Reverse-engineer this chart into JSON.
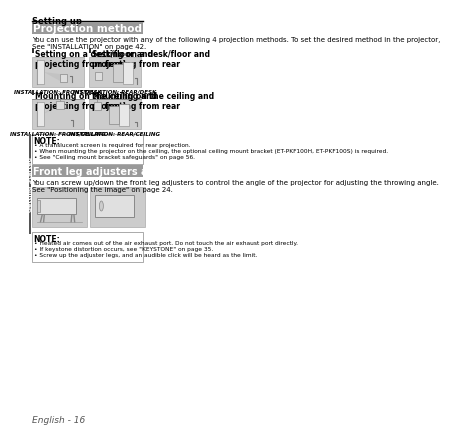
{
  "page_title": "Setting up",
  "section1_title": "Projection method",
  "section1_title_bg": "#999999",
  "section1_title_color": "#ffffff",
  "section1_body": "You can use the projector with any of the following 4 projection methods. To set the desired method in the projector,\nSee \"INSTALLATION\" on page 42.",
  "item1_title": "Setting on a desk/floor and\nprojecting from front",
  "item1_label": "INSTALLATION: FRONT/DESK",
  "item2_title": "Setting on a desk/floor and\nprojecting from rear",
  "item2_label": "INSTALLATION: REAR/DESK",
  "item3_title": "Mounting on the ceiling and\nprojecting from front",
  "item3_label": "INSTALLATION: FRONT/CEILING",
  "item4_title": "Mounting on the ceiling and\nprojecting from rear",
  "item4_label": "INSTALLATION: REAR/CEILING",
  "note1_title": "NOTE:",
  "note1_bullets": [
    "A translucent screen is required for rear projection.",
    "When mounting the projector on the ceiling, the optional ceiling mount bracket (ET-PKF100H, ET-PKF100S) is required.",
    "See \"Ceiling mount bracket safeguards\" on page 56."
  ],
  "section2_title": "Front leg adjusters and throwing angle",
  "section2_title_bg": "#999999",
  "section2_title_color": "#ffffff",
  "section2_body": "You can screw up/down the front leg adjusters to control the angle of the projector for adjusting the throwing angle.\nSee \"Positioning the image\" on page 24.",
  "note2_title": "NOTE:",
  "note2_bullets": [
    "Heated air comes out of the air exhaust port. Do not touch the air exhaust port directly.",
    "If keystone distortion occurs, see \"KEYSTONE\" on page 35.",
    "Screw up the adjuster legs, and an audible click will be heard as the limit."
  ],
  "footer": "English - 16",
  "sidebar_text": "Getting Started",
  "sidebar_bg": "#555555",
  "image_bg": "#cccccc",
  "note_border": "#888888",
  "body_fontsize": 5.0,
  "small_fontsize": 4.5
}
